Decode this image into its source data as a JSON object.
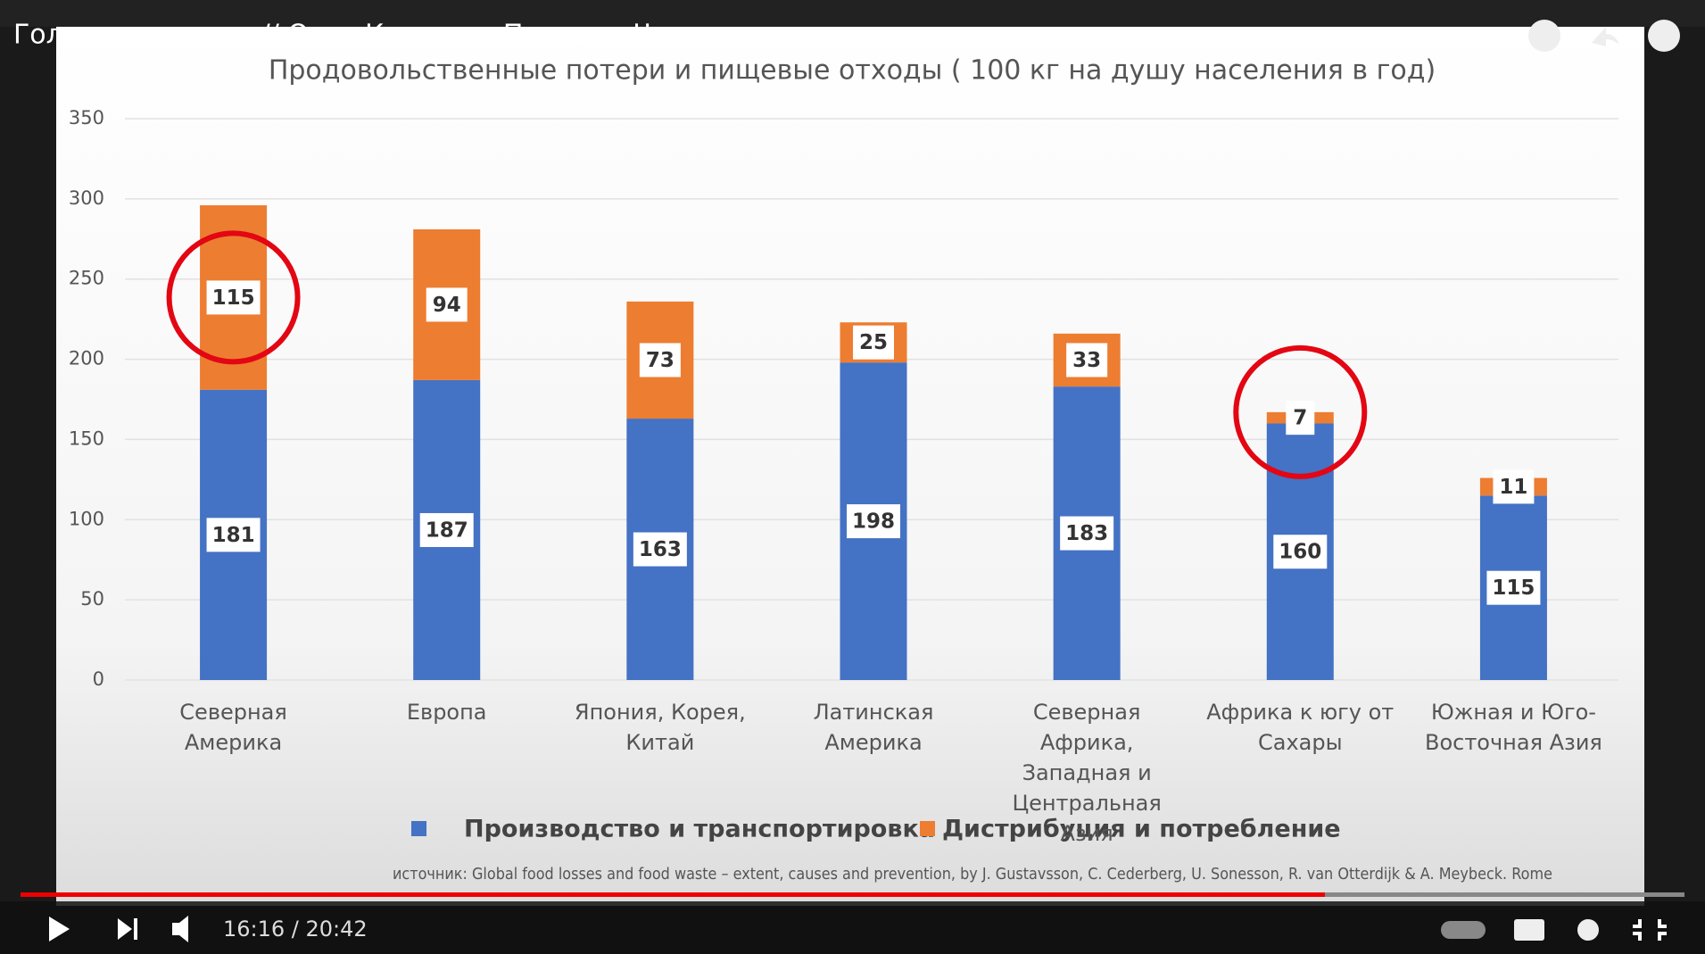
{
  "player": {
    "video_title": "Голод наступает // Олег Комолов. Простые Числа",
    "time": "16:16 / 20:42"
  },
  "chart_data": {
    "type": "stacked_bar",
    "title": "Продовольственные потери и пищевые отходы ( 100 кг на душу населения в год)",
    "categories": [
      "Северная Америка",
      "Европа",
      "Япония, Корея, Китай",
      "Латинская Америка",
      "Северная Африка, Западная и Центральная Азия",
      "Африка к югу от Сахары",
      "Южная и Юго-Восточная Азия"
    ],
    "series": [
      {
        "name": "Производство и транспортировка",
        "color": "#4472c4",
        "values": [
          181,
          187,
          163,
          198,
          183,
          160,
          115
        ]
      },
      {
        "name": "Дистрибуция и потребление",
        "color": "#ed7d31",
        "values": [
          115,
          94,
          73,
          25,
          33,
          7,
          11
        ]
      }
    ],
    "ylim": [
      0,
      350
    ],
    "yticks": [
      0,
      50,
      100,
      150,
      200,
      250,
      300,
      350
    ],
    "grid": true,
    "source": "источник: Global food losses and food waste – extent, causes and prevention, by J. Gustavsson, C. Cederberg, U. Sonesson, R. van Otterdijk & A. Meybeck. Rome"
  }
}
